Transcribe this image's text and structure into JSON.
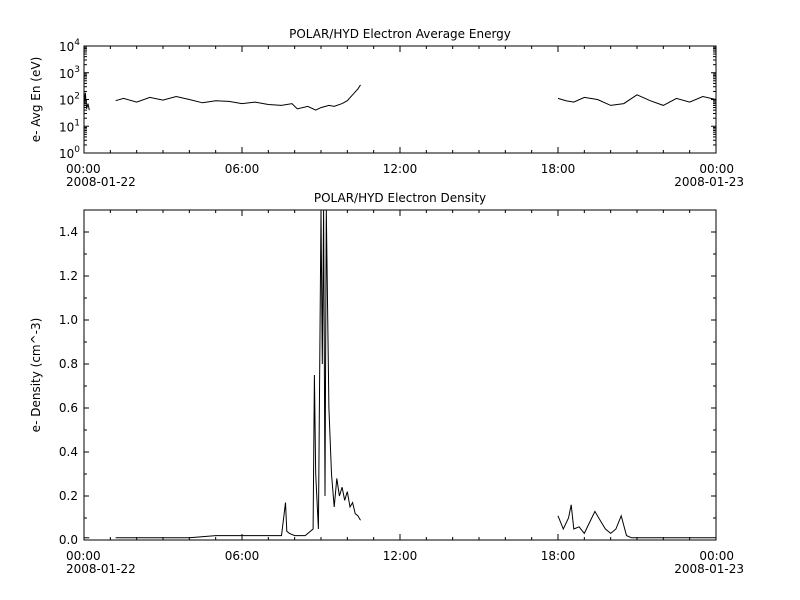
{
  "chart_data": [
    {
      "type": "line",
      "title": "POLAR/HYD  Electron Average Energy",
      "ylabel": "e- Avg En (eV)",
      "xlabel": "",
      "scale_y": "log",
      "ylim": [
        1,
        10000
      ],
      "xlim_hours": [
        0,
        24
      ],
      "yticks": [
        {
          "value": 1,
          "base": "10",
          "exp": "0"
        },
        {
          "value": 10,
          "base": "10",
          "exp": "1"
        },
        {
          "value": 100,
          "base": "10",
          "exp": "2"
        },
        {
          "value": 1000,
          "base": "10",
          "exp": "3"
        },
        {
          "value": 10000,
          "base": "10",
          "exp": "4"
        }
      ],
      "xticks": [
        {
          "hour": 0,
          "label": "00:00",
          "date": "2008-01-22",
          "align": "start"
        },
        {
          "hour": 6,
          "label": "06:00",
          "date": "",
          "align": "middle"
        },
        {
          "hour": 12,
          "label": "12:00",
          "date": "",
          "align": "middle"
        },
        {
          "hour": 18,
          "label": "18:00",
          "date": "",
          "align": "middle"
        },
        {
          "hour": 24,
          "label": "00:00",
          "date": "2008-01-23",
          "align": "end"
        }
      ],
      "grid": false,
      "series": [
        {
          "segments": [
            {
              "hours": [
                0.0,
                0.05,
                0.1,
                0.15,
                0.2
              ],
              "values": [
                60,
                180,
                45,
                70,
                40
              ]
            },
            {
              "hours": [
                1.2,
                1.5,
                2.0,
                2.5,
                3.0,
                3.5,
                4.0,
                4.5,
                5.0,
                5.5,
                6.0,
                6.5,
                7.0,
                7.5,
                7.9,
                8.1,
                8.5,
                8.8,
                9.0,
                9.3,
                9.5,
                9.8,
                10.0,
                10.2,
                10.4,
                10.5
              ],
              "values": [
                90,
                110,
                80,
                120,
                95,
                130,
                100,
                75,
                90,
                85,
                70,
                80,
                65,
                60,
                70,
                45,
                55,
                40,
                50,
                60,
                55,
                70,
                90,
                150,
                250,
                350
              ]
            },
            {
              "hours": [
                18.0,
                18.3,
                18.6,
                19.0,
                19.5,
                20.0,
                20.5,
                21.0,
                21.5,
                22.0,
                22.5,
                23.0,
                23.5,
                24.0
              ],
              "values": [
                110,
                90,
                80,
                120,
                100,
                60,
                70,
                150,
                90,
                60,
                110,
                80,
                130,
                100
              ]
            }
          ]
        }
      ]
    },
    {
      "type": "line",
      "title": "POLAR/HYD  Electron Density",
      "ylabel": "e- Density (cm^-3)",
      "xlabel": "",
      "ylim": [
        0,
        1.5
      ],
      "xlim_hours": [
        0,
        24
      ],
      "yticks": [
        {
          "value": 0.0,
          "label": "0.0"
        },
        {
          "value": 0.2,
          "label": "0.2"
        },
        {
          "value": 0.4,
          "label": "0.4"
        },
        {
          "value": 0.6,
          "label": "0.6"
        },
        {
          "value": 0.8,
          "label": "0.8"
        },
        {
          "value": 1.0,
          "label": "1.0"
        },
        {
          "value": 1.2,
          "label": "1.2"
        },
        {
          "value": 1.4,
          "label": "1.4"
        }
      ],
      "xticks": [
        {
          "hour": 0,
          "label": "00:00",
          "date": "2008-01-22",
          "align": "start"
        },
        {
          "hour": 6,
          "label": "06:00",
          "date": "",
          "align": "middle"
        },
        {
          "hour": 12,
          "label": "12:00",
          "date": "",
          "align": "middle"
        },
        {
          "hour": 18,
          "label": "18:00",
          "date": "",
          "align": "middle"
        },
        {
          "hour": 24,
          "label": "00:00",
          "date": "2008-01-23",
          "align": "end"
        }
      ],
      "grid": false,
      "series": [
        {
          "segments": [
            {
              "hours": [
                0.0,
                0.2
              ],
              "values": [
                0.01,
                0.01
              ]
            },
            {
              "hours": [
                1.2,
                2.0,
                3.0,
                4.0,
                5.0,
                6.0,
                7.0,
                7.5,
                7.65,
                7.7,
                7.8,
                8.0,
                8.4,
                8.7,
                8.75,
                8.8,
                8.9,
                9.0,
                9.05,
                9.1,
                9.15,
                9.2,
                9.3,
                9.4,
                9.5,
                9.6,
                9.7,
                9.8,
                9.9,
                10.0,
                10.1,
                10.2,
                10.3,
                10.4,
                10.5
              ],
              "values": [
                0.01,
                0.01,
                0.01,
                0.01,
                0.02,
                0.02,
                0.02,
                0.02,
                0.17,
                0.04,
                0.03,
                0.02,
                0.02,
                0.05,
                0.75,
                0.3,
                0.05,
                1.5,
                0.8,
                1.5,
                0.2,
                1.5,
                0.6,
                0.3,
                0.15,
                0.28,
                0.2,
                0.24,
                0.18,
                0.22,
                0.15,
                0.17,
                0.12,
                0.11,
                0.09
              ]
            },
            {
              "hours": [
                18.0,
                18.2,
                18.4,
                18.5,
                18.6,
                18.8,
                19.0,
                19.2,
                19.4,
                19.6,
                19.8,
                20.0,
                20.2,
                20.4,
                20.6,
                20.8,
                21.0,
                22.0,
                23.0,
                24.0
              ],
              "values": [
                0.11,
                0.05,
                0.1,
                0.16,
                0.05,
                0.06,
                0.03,
                0.08,
                0.13,
                0.09,
                0.05,
                0.03,
                0.05,
                0.11,
                0.02,
                0.01,
                0.01,
                0.01,
                0.01,
                0.01
              ]
            }
          ]
        }
      ]
    }
  ]
}
